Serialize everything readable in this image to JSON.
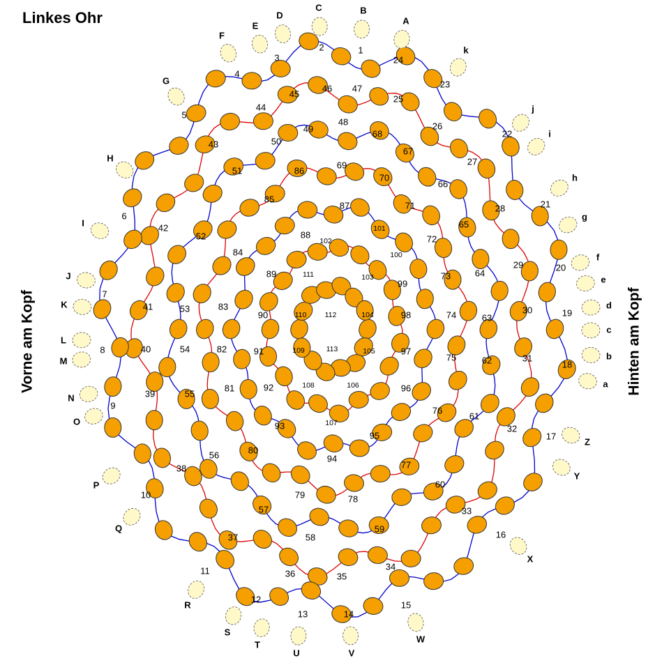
{
  "title": "Linkes Ohr",
  "left_label": "Vorne am Kopf",
  "right_label": "Hinten am Kopf",
  "points": [
    "1",
    "2",
    "3",
    "4",
    "5",
    "6",
    "7",
    "8",
    "9",
    "10",
    "11",
    "12",
    "13",
    "14",
    "15",
    "16",
    "17",
    "18",
    "19",
    "20",
    "21",
    "22",
    "23",
    "24",
    "25",
    "26",
    "27",
    "28",
    "29",
    "30",
    "31",
    "32",
    "33",
    "34",
    "35",
    "36",
    "37",
    "38",
    "39",
    "40",
    "41",
    "42",
    "43",
    "44",
    "45",
    "46",
    "47",
    "48",
    "49",
    "50",
    "51",
    "52",
    "53",
    "54",
    "55",
    "56",
    "57",
    "58",
    "59",
    "60",
    "61",
    "62",
    "63",
    "64",
    "65",
    "66",
    "67",
    "68",
    "69",
    "70",
    "71",
    "72",
    "73",
    "74",
    "75",
    "76",
    "77",
    "78",
    "79",
    "80",
    "81",
    "82",
    "83",
    "84",
    "85",
    "86",
    "87",
    "88",
    "89",
    "90",
    "91",
    "92",
    "93",
    "94",
    "95",
    "96",
    "97",
    "98",
    "99",
    "100",
    "101",
    "102",
    "103",
    "104",
    "105",
    "106",
    "107",
    "108",
    "109",
    "110",
    "111",
    "112",
    "113"
  ],
  "letters": [
    "A",
    "B",
    "C",
    "D",
    "E",
    "F",
    "G",
    "H",
    "I",
    "J",
    "K",
    "L",
    "M",
    "N",
    "O",
    "P",
    "Q",
    "R",
    "S",
    "T",
    "U",
    "V",
    "W",
    "X",
    "Y",
    "Z",
    "a",
    "b",
    "c",
    "d",
    "e",
    "f",
    "g",
    "h",
    "i",
    "j",
    "k"
  ]
}
